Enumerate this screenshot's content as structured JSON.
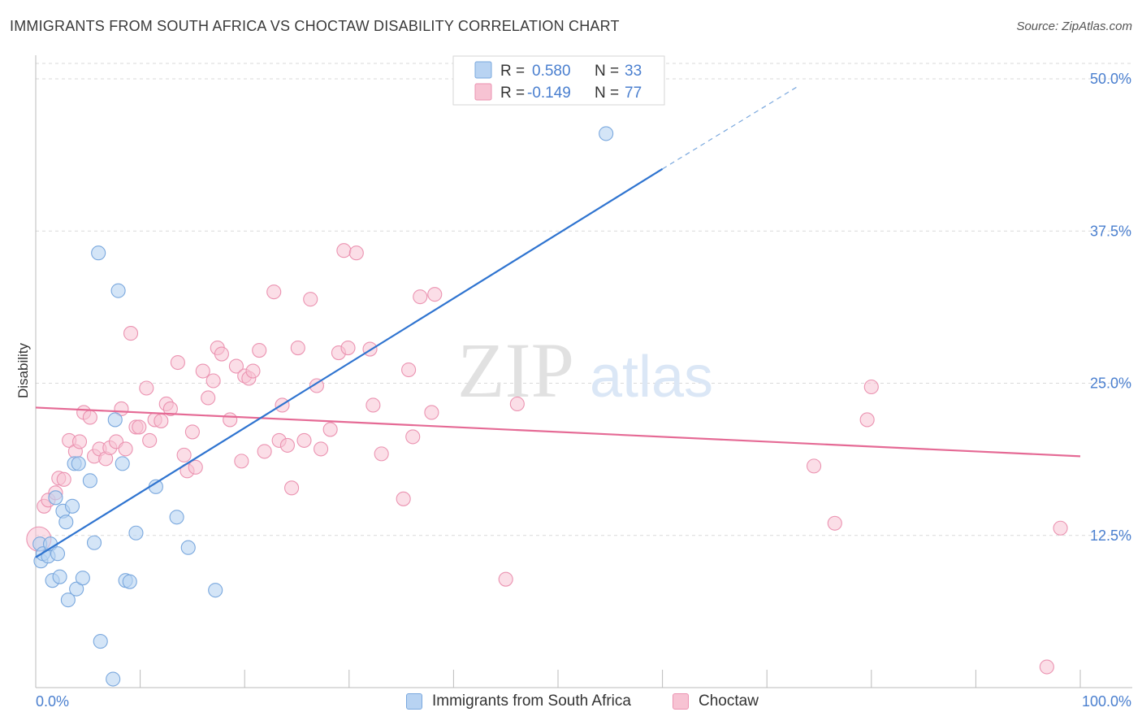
{
  "header": {
    "title": "IMMIGRANTS FROM SOUTH AFRICA VS CHOCTAW DISABILITY CORRELATION CHART",
    "source": "Source: ZipAtlas.com"
  },
  "watermark": {
    "left": "ZIP",
    "right": "atlas"
  },
  "legend": {
    "r_label": "R =",
    "n_label": "N =",
    "entries": [
      {
        "r": "0.580",
        "n": "33"
      },
      {
        "r": "-0.149",
        "n": "77"
      }
    ]
  },
  "colors": {
    "blue_fill": "#b8d3f2",
    "blue_stroke": "#7aa8de",
    "blue_line": "#2f74d0",
    "pink_fill": "#f7c3d3",
    "pink_stroke": "#eb93b1",
    "pink_line": "#e56a95",
    "tick_label": "#4a7fcf",
    "grid": "#d9d9d9"
  },
  "chart_data": {
    "type": "scatter",
    "title": "IMMIGRANTS FROM SOUTH AFRICA VS CHOCTAW DISABILITY CORRELATION CHART",
    "xlabel": "",
    "ylabel": "Disability",
    "xlim": [
      0,
      100
    ],
    "ylim": [
      0,
      50
    ],
    "x_tick_labels": [
      "0.0%",
      "100.0%"
    ],
    "y_ticks": [
      12.5,
      25.0,
      37.5,
      50.0
    ],
    "y_tick_labels": [
      "12.5%",
      "25.0%",
      "37.5%",
      "50.0%"
    ],
    "grid": true,
    "legend_position": "top-center",
    "series": [
      {
        "name": "Immigrants from South Africa",
        "r": 0.58,
        "n": 33,
        "trend": {
          "x": [
            0,
            60
          ],
          "y": [
            10.7,
            42.6
          ],
          "dashed_extension_to": [
            73,
            49.4
          ]
        },
        "points": [
          [
            0.4,
            11.8
          ],
          [
            0.5,
            10.4
          ],
          [
            0.7,
            11.0
          ],
          [
            1.2,
            10.8
          ],
          [
            1.4,
            11.8
          ],
          [
            1.6,
            8.8
          ],
          [
            1.9,
            15.6
          ],
          [
            2.1,
            11.0
          ],
          [
            2.3,
            9.1
          ],
          [
            2.6,
            14.5
          ],
          [
            2.9,
            13.6
          ],
          [
            3.1,
            7.2
          ],
          [
            3.5,
            14.9
          ],
          [
            3.7,
            18.4
          ],
          [
            3.9,
            8.1
          ],
          [
            4.1,
            18.4
          ],
          [
            4.5,
            9.0
          ],
          [
            5.2,
            17.0
          ],
          [
            5.6,
            11.9
          ],
          [
            6.0,
            35.7
          ],
          [
            6.2,
            3.8
          ],
          [
            7.4,
            0.7
          ],
          [
            7.6,
            22.0
          ],
          [
            7.9,
            32.6
          ],
          [
            8.3,
            18.4
          ],
          [
            8.6,
            8.8
          ],
          [
            9.0,
            8.7
          ],
          [
            9.6,
            12.7
          ],
          [
            11.5,
            16.5
          ],
          [
            13.5,
            14.0
          ],
          [
            14.6,
            11.5
          ],
          [
            17.2,
            8.0
          ],
          [
            54.6,
            45.5
          ]
        ]
      },
      {
        "name": "Choctaw",
        "r": -0.149,
        "n": 77,
        "trend": {
          "x": [
            0,
            100
          ],
          "y": [
            23.0,
            19.0
          ]
        },
        "points": [
          [
            0.3,
            12.2
          ],
          [
            0.8,
            14.9
          ],
          [
            1.2,
            15.4
          ],
          [
            1.9,
            16.0
          ],
          [
            2.2,
            17.2
          ],
          [
            2.7,
            17.1
          ],
          [
            3.2,
            20.3
          ],
          [
            3.8,
            19.4
          ],
          [
            4.2,
            20.2
          ],
          [
            4.6,
            22.6
          ],
          [
            5.2,
            22.2
          ],
          [
            5.6,
            19.0
          ],
          [
            6.1,
            19.6
          ],
          [
            6.7,
            18.8
          ],
          [
            7.1,
            19.7
          ],
          [
            7.7,
            20.2
          ],
          [
            8.2,
            22.9
          ],
          [
            8.6,
            19.6
          ],
          [
            9.1,
            29.1
          ],
          [
            9.6,
            21.4
          ],
          [
            9.9,
            21.4
          ],
          [
            10.6,
            24.6
          ],
          [
            10.9,
            20.3
          ],
          [
            11.4,
            22.0
          ],
          [
            12.0,
            21.9
          ],
          [
            12.5,
            23.3
          ],
          [
            12.9,
            22.9
          ],
          [
            13.6,
            26.7
          ],
          [
            14.2,
            19.1
          ],
          [
            14.5,
            17.8
          ],
          [
            15.0,
            21.0
          ],
          [
            15.3,
            18.1
          ],
          [
            16.0,
            26.0
          ],
          [
            16.5,
            23.8
          ],
          [
            17.0,
            25.2
          ],
          [
            17.4,
            27.9
          ],
          [
            17.8,
            27.4
          ],
          [
            18.6,
            22.0
          ],
          [
            19.2,
            26.4
          ],
          [
            19.7,
            18.6
          ],
          [
            20.0,
            25.6
          ],
          [
            20.4,
            25.4
          ],
          [
            20.8,
            26.0
          ],
          [
            21.4,
            27.7
          ],
          [
            21.9,
            19.4
          ],
          [
            22.8,
            32.5
          ],
          [
            23.3,
            20.3
          ],
          [
            23.6,
            23.2
          ],
          [
            24.1,
            19.9
          ],
          [
            24.5,
            16.4
          ],
          [
            25.1,
            27.9
          ],
          [
            25.7,
            20.3
          ],
          [
            26.3,
            31.9
          ],
          [
            26.9,
            24.8
          ],
          [
            27.3,
            19.6
          ],
          [
            28.2,
            21.2
          ],
          [
            29.0,
            27.5
          ],
          [
            29.5,
            35.9
          ],
          [
            29.9,
            27.9
          ],
          [
            30.7,
            35.7
          ],
          [
            32.0,
            27.8
          ],
          [
            32.3,
            23.2
          ],
          [
            33.1,
            19.2
          ],
          [
            35.2,
            15.5
          ],
          [
            35.7,
            26.1
          ],
          [
            36.1,
            20.6
          ],
          [
            36.8,
            32.1
          ],
          [
            37.9,
            22.6
          ],
          [
            38.2,
            32.3
          ],
          [
            45.0,
            8.9
          ],
          [
            46.1,
            23.3
          ],
          [
            74.5,
            18.2
          ],
          [
            76.5,
            13.5
          ],
          [
            79.6,
            22.0
          ],
          [
            80.0,
            24.7
          ],
          [
            96.8,
            1.7
          ],
          [
            98.1,
            13.1
          ]
        ]
      }
    ]
  }
}
